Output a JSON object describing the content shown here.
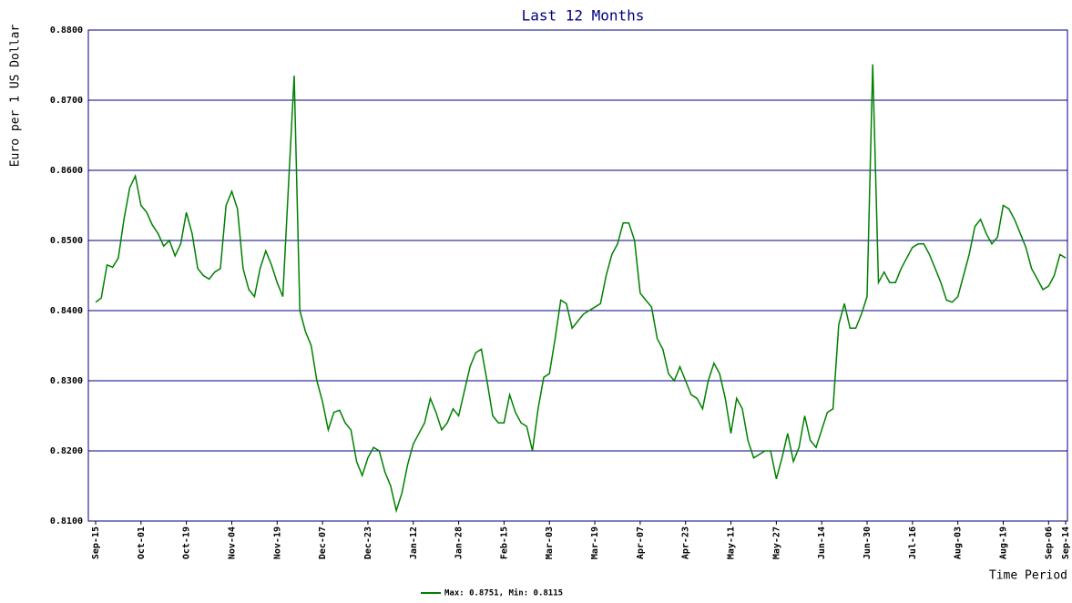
{
  "chart_data": {
    "type": "line",
    "title": "Last 12 Months",
    "y_label": "Euro per 1 US Dollar",
    "x_label": "Time Period",
    "categories": [
      "Sep-15",
      null,
      null,
      null,
      null,
      null,
      null,
      null,
      "Oct-01",
      null,
      null,
      null,
      null,
      null,
      null,
      null,
      "Oct-19",
      null,
      null,
      null,
      null,
      null,
      null,
      null,
      "Nov-04",
      null,
      null,
      null,
      null,
      null,
      null,
      null,
      "Nov-19",
      null,
      null,
      null,
      null,
      null,
      null,
      null,
      "Dec-07",
      null,
      null,
      null,
      null,
      null,
      null,
      null,
      "Dec-23",
      null,
      null,
      null,
      null,
      null,
      null,
      null,
      "Jan-12",
      null,
      null,
      null,
      null,
      null,
      null,
      null,
      "Jan-28",
      null,
      null,
      null,
      null,
      null,
      null,
      null,
      "Feb-15",
      null,
      null,
      null,
      null,
      null,
      null,
      null,
      "Mar-03",
      null,
      null,
      null,
      null,
      null,
      null,
      null,
      "Mar-19",
      null,
      null,
      null,
      null,
      null,
      null,
      null,
      "Apr-07",
      null,
      null,
      null,
      null,
      null,
      null,
      null,
      "Apr-23",
      null,
      null,
      null,
      null,
      null,
      null,
      null,
      "May-11",
      null,
      null,
      null,
      null,
      null,
      null,
      null,
      "May-27",
      null,
      null,
      null,
      null,
      null,
      null,
      null,
      "Jun-14",
      null,
      null,
      null,
      null,
      null,
      null,
      null,
      "Jun-30",
      null,
      null,
      null,
      null,
      null,
      null,
      null,
      "Jul-16",
      null,
      null,
      null,
      null,
      null,
      null,
      null,
      "Aug-03",
      null,
      null,
      null,
      null,
      null,
      null,
      null,
      "Aug-19",
      null,
      null,
      null,
      null,
      null,
      null,
      null,
      "Sep-06",
      null,
      null,
      "Sep-14"
    ],
    "series": [
      {
        "name": "Max: 0.8751, Min: 0.8115",
        "color": "#008000",
        "values": [
          0.8412,
          0.8418,
          0.8465,
          0.8462,
          0.8475,
          0.853,
          0.8575,
          0.8592,
          0.855,
          0.854,
          0.8522,
          0.851,
          0.8492,
          0.85,
          0.8478,
          0.8495,
          0.854,
          0.851,
          0.846,
          0.845,
          0.8445,
          0.8455,
          0.846,
          0.855,
          0.857,
          0.8545,
          0.846,
          0.843,
          0.842,
          0.846,
          0.8485,
          0.8465,
          0.844,
          0.842,
          0.858,
          0.8735,
          0.84,
          0.837,
          0.835,
          0.83,
          0.827,
          0.823,
          0.8255,
          0.8258,
          0.824,
          0.823,
          0.8185,
          0.8165,
          0.819,
          0.8205,
          0.82,
          0.817,
          0.815,
          0.8115,
          0.814,
          0.818,
          0.821,
          0.8225,
          0.824,
          0.8275,
          0.8255,
          0.823,
          0.824,
          0.826,
          0.825,
          0.8285,
          0.832,
          0.834,
          0.8345,
          0.83,
          0.825,
          0.824,
          0.824,
          0.828,
          0.8255,
          0.824,
          0.8235,
          0.82,
          0.826,
          0.8305,
          0.831,
          0.836,
          0.8415,
          0.841,
          0.8375,
          0.8385,
          0.8395,
          0.84,
          0.8405,
          0.841,
          0.845,
          0.848,
          0.8495,
          0.8525,
          0.8525,
          0.85,
          0.8425,
          0.8415,
          0.8405,
          0.836,
          0.8345,
          0.831,
          0.83,
          0.832,
          0.83,
          0.828,
          0.8275,
          0.826,
          0.83,
          0.8325,
          0.831,
          0.8275,
          0.8225,
          0.8275,
          0.826,
          0.8215,
          0.819,
          0.8195,
          0.82,
          0.82,
          0.816,
          0.819,
          0.8225,
          0.8185,
          0.8205,
          0.825,
          0.8215,
          0.8205,
          0.823,
          0.8255,
          0.826,
          0.838,
          0.841,
          0.8375,
          0.8375,
          0.8395,
          0.842,
          0.8751,
          0.844,
          0.8455,
          0.844,
          0.844,
          0.846,
          0.8475,
          0.849,
          0.8495,
          0.8495,
          0.848,
          0.846,
          0.844,
          0.8415,
          0.8412,
          0.842,
          0.845,
          0.848,
          0.852,
          0.853,
          0.851,
          0.8495,
          0.8505,
          0.855,
          0.8545,
          0.853,
          0.851,
          0.849,
          0.846,
          0.8445,
          0.843,
          0.8435,
          0.845,
          0.848,
          0.8475
        ]
      }
    ],
    "ylim": [
      0.81,
      0.88
    ],
    "yticks": [
      {
        "value": 0.81,
        "label": "0.8100"
      },
      {
        "value": 0.82,
        "label": "0.8200"
      },
      {
        "value": 0.83,
        "label": "0.8300"
      },
      {
        "value": 0.84,
        "label": "0.8400"
      },
      {
        "value": 0.85,
        "label": "0.8500"
      },
      {
        "value": 0.86,
        "label": "0.8600"
      },
      {
        "value": 0.87,
        "label": "0.8700"
      },
      {
        "value": 0.88,
        "label": "0.8800"
      }
    ],
    "grid": true,
    "grid_color": "#000080"
  }
}
